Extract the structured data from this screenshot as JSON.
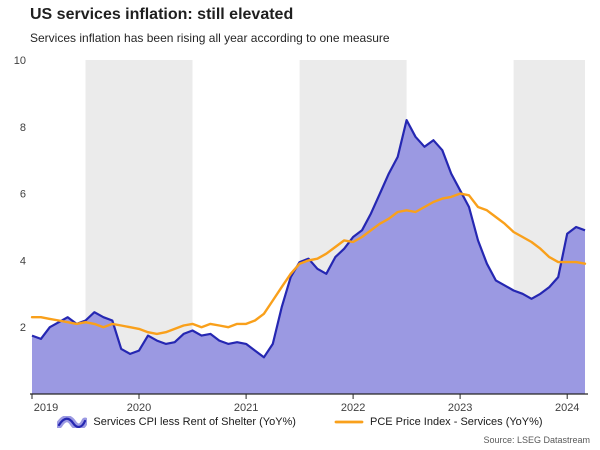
{
  "header": {
    "title": "US services inflation: still elevated",
    "subtitle": "Services inflation has been rising all year according to one measure"
  },
  "source": "Source: LSEG Datastream",
  "legend": [
    {
      "label": "Services CPI less Rent of Shelter (YoY%)",
      "type": "area"
    },
    {
      "label": "PCE Price Index - Services (YoY%)",
      "type": "line"
    }
  ],
  "colors": {
    "cpi_line": "#2527b2",
    "cpi_fill": "#9b99e2",
    "pce_line": "#f9a01b",
    "band": "#ebebeb",
    "axis": "#262626",
    "tick_text": "#404040"
  },
  "chart_data": {
    "type": "line",
    "title": "US services inflation: still elevated",
    "subtitle": "Services inflation has been rising all year according to one measure",
    "x_unit": "decimal_year_monthly",
    "x_start": 2019.0,
    "x_end": 2024.1667,
    "ylim": [
      0,
      10
    ],
    "yticks": [
      2,
      4,
      6,
      8,
      10
    ],
    "xticks": [
      2019,
      2020,
      2021,
      2022,
      2023,
      2024
    ],
    "grid": false,
    "legend_position": "bottom",
    "band_starts": [
      2019.5,
      2021.5,
      2023.5
    ],
    "band_width": 1,
    "series": [
      {
        "name": "Services CPI less Rent of Shelter (YoY%)",
        "style": "area",
        "values": [
          1.75,
          1.65,
          2.0,
          2.15,
          2.3,
          2.1,
          2.2,
          2.45,
          2.3,
          2.2,
          1.35,
          1.2,
          1.3,
          1.75,
          1.6,
          1.5,
          1.55,
          1.8,
          1.9,
          1.75,
          1.8,
          1.6,
          1.5,
          1.55,
          1.5,
          1.3,
          1.1,
          1.5,
          2.6,
          3.5,
          3.95,
          4.05,
          3.75,
          3.6,
          4.1,
          4.35,
          4.7,
          4.9,
          5.4,
          6.0,
          6.6,
          7.1,
          8.2,
          7.7,
          7.4,
          7.6,
          7.3,
          6.6,
          6.1,
          5.6,
          4.6,
          3.9,
          3.4,
          3.25,
          3.1,
          3.0,
          2.85,
          3.0,
          3.2,
          3.5,
          4.8,
          5.0,
          4.9
        ]
      },
      {
        "name": "PCE Price Index - Services (YoY%)",
        "style": "line",
        "values": [
          2.3,
          2.3,
          2.25,
          2.2,
          2.15,
          2.1,
          2.15,
          2.1,
          2.0,
          2.1,
          2.05,
          2.0,
          1.95,
          1.85,
          1.8,
          1.85,
          1.95,
          2.05,
          2.1,
          2.0,
          2.1,
          2.05,
          2.0,
          2.1,
          2.1,
          2.2,
          2.4,
          2.8,
          3.2,
          3.6,
          3.9,
          4.0,
          4.05,
          4.2,
          4.4,
          4.6,
          4.55,
          4.7,
          4.9,
          5.1,
          5.25,
          5.45,
          5.5,
          5.45,
          5.6,
          5.75,
          5.85,
          5.9,
          6.0,
          5.95,
          5.6,
          5.5,
          5.3,
          5.1,
          4.85,
          4.7,
          4.55,
          4.35,
          4.1,
          3.95,
          3.95,
          3.95,
          3.9
        ]
      }
    ]
  }
}
